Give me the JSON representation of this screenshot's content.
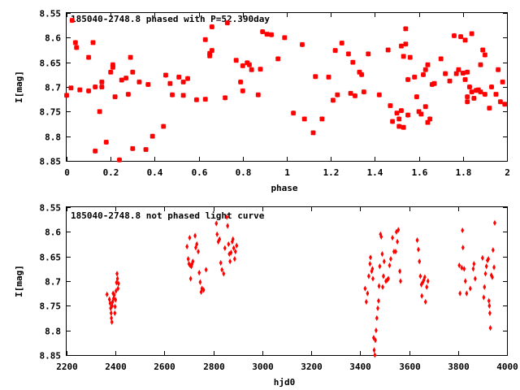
{
  "chart_data": [
    {
      "type": "scatter",
      "title": "185040-2748.8 phased with P=52.390day",
      "xlabel": "phase",
      "ylabel": "I[mag]",
      "xlim": [
        0,
        2
      ],
      "ylim": [
        8.85,
        8.55
      ],
      "y_inverted": true,
      "grid": false,
      "xticks": [
        "0",
        "0.2",
        "0.4",
        "0.6",
        "0.8",
        "1",
        "1.2",
        "1.4",
        "1.6",
        "1.8",
        "2"
      ],
      "yticks": [
        "8.55",
        "8.6",
        "8.65",
        "8.7",
        "8.75",
        "8.8",
        "8.85"
      ],
      "marker": "cross",
      "color": "#ff0000",
      "points": [
        [
          0.0,
          8.717
        ],
        [
          0.02,
          8.702
        ],
        [
          0.025,
          8.565
        ],
        [
          0.04,
          8.61
        ],
        [
          0.045,
          8.62
        ],
        [
          0.06,
          8.706
        ],
        [
          0.1,
          8.708
        ],
        [
          0.1,
          8.64
        ],
        [
          0.12,
          8.61
        ],
        [
          0.13,
          8.7
        ],
        [
          0.13,
          8.83
        ],
        [
          0.15,
          8.75
        ],
        [
          0.16,
          8.69
        ],
        [
          0.16,
          8.7
        ],
        [
          0.18,
          8.812
        ],
        [
          0.2,
          8.67
        ],
        [
          0.21,
          8.66
        ],
        [
          0.21,
          8.655
        ],
        [
          0.22,
          8.72
        ],
        [
          0.24,
          8.848
        ],
        [
          0.25,
          8.686
        ],
        [
          0.27,
          8.682
        ],
        [
          0.28,
          8.715
        ],
        [
          0.29,
          8.64
        ],
        [
          0.3,
          8.825
        ],
        [
          0.3,
          8.67
        ],
        [
          0.33,
          8.69
        ],
        [
          0.36,
          8.827
        ],
        [
          0.37,
          8.695
        ],
        [
          0.39,
          8.8
        ],
        [
          0.44,
          8.78
        ],
        [
          0.45,
          8.676
        ],
        [
          0.47,
          8.693
        ],
        [
          0.48,
          8.716
        ],
        [
          0.51,
          8.68
        ],
        [
          0.53,
          8.69
        ],
        [
          0.53,
          8.717
        ],
        [
          0.55,
          8.683
        ],
        [
          0.59,
          8.726
        ],
        [
          0.63,
          8.604
        ],
        [
          0.63,
          8.725
        ],
        [
          0.65,
          8.637
        ],
        [
          0.65,
          8.632
        ],
        [
          0.66,
          8.626
        ],
        [
          0.66,
          8.578
        ],
        [
          0.72,
          8.722
        ],
        [
          0.73,
          8.57
        ],
        [
          0.77,
          8.646
        ],
        [
          0.79,
          8.69
        ],
        [
          0.8,
          8.657
        ],
        [
          0.8,
          8.708
        ],
        [
          0.82,
          8.651
        ],
        [
          0.83,
          8.655
        ],
        [
          0.84,
          8.665
        ],
        [
          0.87,
          8.716
        ],
        [
          0.88,
          8.664
        ],
        [
          0.89,
          8.588
        ],
        [
          0.91,
          8.593
        ],
        [
          0.93,
          8.594
        ],
        [
          0.96,
          8.643
        ],
        [
          0.99,
          8.6
        ],
        [
          1.03,
          8.753
        ],
        [
          1.07,
          8.614
        ],
        [
          1.08,
          8.765
        ],
        [
          1.12,
          8.793
        ],
        [
          1.13,
          8.679
        ],
        [
          1.16,
          8.765
        ],
        [
          1.19,
          8.68
        ],
        [
          1.21,
          8.727
        ],
        [
          1.22,
          8.626
        ],
        [
          1.23,
          8.716
        ],
        [
          1.25,
          8.611
        ],
        [
          1.28,
          8.633
        ],
        [
          1.29,
          8.713
        ],
        [
          1.3,
          8.65
        ],
        [
          1.31,
          8.718
        ],
        [
          1.33,
          8.67
        ],
        [
          1.34,
          8.675
        ],
        [
          1.35,
          8.71
        ],
        [
          1.37,
          8.633
        ],
        [
          1.42,
          8.716
        ],
        [
          1.46,
          8.625
        ],
        [
          1.47,
          8.738
        ],
        [
          1.48,
          8.77
        ],
        [
          1.5,
          8.753
        ],
        [
          1.51,
          8.765
        ],
        [
          1.51,
          8.78
        ],
        [
          1.52,
          8.617
        ],
        [
          1.52,
          8.748
        ],
        [
          1.53,
          8.782
        ],
        [
          1.53,
          8.638
        ],
        [
          1.54,
          8.582
        ],
        [
          1.54,
          8.613
        ],
        [
          1.55,
          8.685
        ],
        [
          1.55,
          8.757
        ],
        [
          1.56,
          8.64
        ],
        [
          1.58,
          8.68
        ],
        [
          1.59,
          8.72
        ],
        [
          1.6,
          8.75
        ],
        [
          1.61,
          8.755
        ],
        [
          1.62,
          8.675
        ],
        [
          1.63,
          8.665
        ],
        [
          1.63,
          8.74
        ],
        [
          1.64,
          8.772
        ],
        [
          1.64,
          8.655
        ],
        [
          1.65,
          8.765
        ],
        [
          1.66,
          8.695
        ],
        [
          1.67,
          8.693
        ],
        [
          1.7,
          8.643
        ],
        [
          1.72,
          8.673
        ],
        [
          1.74,
          8.688
        ],
        [
          1.76,
          8.596
        ],
        [
          1.77,
          8.673
        ],
        [
          1.78,
          8.665
        ],
        [
          1.79,
          8.598
        ],
        [
          1.8,
          8.672
        ],
        [
          1.81,
          8.605
        ],
        [
          1.81,
          8.685
        ],
        [
          1.82,
          8.72
        ],
        [
          1.82,
          8.73
        ],
        [
          1.82,
          8.67
        ],
        [
          1.83,
          8.7
        ],
        [
          1.84,
          8.71
        ],
        [
          1.84,
          8.592
        ],
        [
          1.85,
          8.723
        ],
        [
          1.86,
          8.707
        ],
        [
          1.87,
          8.706
        ],
        [
          1.88,
          8.71
        ],
        [
          1.88,
          8.655
        ],
        [
          1.89,
          8.625
        ],
        [
          1.9,
          8.715
        ],
        [
          1.9,
          8.635
        ],
        [
          1.92,
          8.743
        ],
        [
          1.93,
          8.7
        ],
        [
          1.95,
          8.715
        ],
        [
          1.96,
          8.665
        ],
        [
          1.97,
          8.73
        ],
        [
          1.98,
          8.69
        ],
        [
          1.99,
          8.735
        ]
      ]
    },
    {
      "type": "scatter",
      "title": "185040-2748.8 not phased light curve",
      "xlabel": "hjd0",
      "ylabel": "I[mag]",
      "xlim": [
        2200,
        4000
      ],
      "ylim": [
        8.85,
        8.55
      ],
      "y_inverted": true,
      "grid": false,
      "xticks": [
        "2200",
        "2400",
        "2600",
        "2800",
        "3000",
        "3200",
        "3400",
        "3600",
        "3800",
        "4000"
      ],
      "yticks": [
        "8.55",
        "8.6",
        "8.65",
        "8.7",
        "8.75",
        "8.8",
        "8.85"
      ],
      "marker": "diamond",
      "color": "#ff0000",
      "points": [
        [
          2365,
          8.727
        ],
        [
          2375,
          8.737
        ],
        [
          2378,
          8.745
        ],
        [
          2380,
          8.755
        ],
        [
          2382,
          8.765
        ],
        [
          2383,
          8.775
        ],
        [
          2385,
          8.783
        ],
        [
          2386,
          8.75
        ],
        [
          2388,
          8.742
        ],
        [
          2390,
          8.725
        ],
        [
          2392,
          8.735
        ],
        [
          2395,
          8.728
        ],
        [
          2397,
          8.765
        ],
        [
          2398,
          8.752
        ],
        [
          2400,
          8.738
        ],
        [
          2402,
          8.72
        ],
        [
          2404,
          8.703
        ],
        [
          2406,
          8.685
        ],
        [
          2408,
          8.695
        ],
        [
          2410,
          8.715
        ],
        [
          2412,
          8.705
        ],
        [
          2692,
          8.63
        ],
        [
          2697,
          8.655
        ],
        [
          2700,
          8.665
        ],
        [
          2703,
          8.612
        ],
        [
          2705,
          8.668
        ],
        [
          2707,
          8.695
        ],
        [
          2710,
          8.67
        ],
        [
          2713,
          8.665
        ],
        [
          2716,
          8.66
        ],
        [
          2725,
          8.608
        ],
        [
          2728,
          8.632
        ],
        [
          2732,
          8.625
        ],
        [
          2738,
          8.64
        ],
        [
          2742,
          8.683
        ],
        [
          2746,
          8.702
        ],
        [
          2750,
          8.722
        ],
        [
          2753,
          8.715
        ],
        [
          2760,
          8.718
        ],
        [
          2770,
          8.677
        ],
        [
          2812,
          8.583
        ],
        [
          2815,
          8.605
        ],
        [
          2820,
          8.62
        ],
        [
          2825,
          8.615
        ],
        [
          2830,
          8.663
        ],
        [
          2835,
          8.677
        ],
        [
          2842,
          8.685
        ],
        [
          2847,
          8.633
        ],
        [
          2855,
          8.57
        ],
        [
          2858,
          8.588
        ],
        [
          2862,
          8.625
        ],
        [
          2865,
          8.645
        ],
        [
          2868,
          8.66
        ],
        [
          2872,
          8.642
        ],
        [
          2877,
          8.62
        ],
        [
          2880,
          8.615
        ],
        [
          2883,
          8.633
        ],
        [
          2887,
          8.655
        ],
        [
          2890,
          8.64
        ],
        [
          2895,
          8.628
        ],
        [
          3420,
          8.715
        ],
        [
          3425,
          8.742
        ],
        [
          3430,
          8.725
        ],
        [
          3435,
          8.69
        ],
        [
          3440,
          8.665
        ],
        [
          3442,
          8.652
        ],
        [
          3447,
          8.68
        ],
        [
          3450,
          8.675
        ],
        [
          3452,
          8.695
        ],
        [
          3455,
          8.815
        ],
        [
          3457,
          8.84
        ],
        [
          3460,
          8.85
        ],
        [
          3462,
          8.82
        ],
        [
          3465,
          8.8
        ],
        [
          3468,
          8.775
        ],
        [
          3472,
          8.755
        ],
        [
          3475,
          8.74
        ],
        [
          3477,
          8.71
        ],
        [
          3480,
          8.67
        ],
        [
          3483,
          8.605
        ],
        [
          3486,
          8.61
        ],
        [
          3490,
          8.645
        ],
        [
          3492,
          8.712
        ],
        [
          3495,
          8.69
        ],
        [
          3498,
          8.66
        ],
        [
          3505,
          8.7
        ],
        [
          3510,
          8.698
        ],
        [
          3515,
          8.695
        ],
        [
          3520,
          8.668
        ],
        [
          3525,
          8.655
        ],
        [
          3532,
          8.612
        ],
        [
          3538,
          8.64
        ],
        [
          3545,
          8.64
        ],
        [
          3548,
          8.6
        ],
        [
          3552,
          8.62
        ],
        [
          3556,
          8.596
        ],
        [
          3562,
          8.68
        ],
        [
          3565,
          8.7
        ],
        [
          3633,
          8.617
        ],
        [
          3638,
          8.636
        ],
        [
          3642,
          8.66
        ],
        [
          3646,
          8.69
        ],
        [
          3650,
          8.707
        ],
        [
          3652,
          8.73
        ],
        [
          3656,
          8.702
        ],
        [
          3660,
          8.698
        ],
        [
          3664,
          8.692
        ],
        [
          3667,
          8.742
        ],
        [
          3672,
          8.712
        ],
        [
          3677,
          8.7
        ],
        [
          3805,
          8.668
        ],
        [
          3808,
          8.725
        ],
        [
          3815,
          8.673
        ],
        [
          3818,
          8.597
        ],
        [
          3820,
          8.632
        ],
        [
          3825,
          8.675
        ],
        [
          3830,
          8.7
        ],
        [
          3835,
          8.725
        ],
        [
          3850,
          8.715
        ],
        [
          3862,
          8.675
        ],
        [
          3865,
          8.665
        ],
        [
          3870,
          8.695
        ],
        [
          3900,
          8.653
        ],
        [
          3905,
          8.733
        ],
        [
          3908,
          8.712
        ],
        [
          3912,
          8.685
        ],
        [
          3916,
          8.67
        ],
        [
          3920,
          8.658
        ],
        [
          3924,
          8.655
        ],
        [
          3926,
          8.74
        ],
        [
          3928,
          8.75
        ],
        [
          3930,
          8.765
        ],
        [
          3932,
          8.795
        ],
        [
          3936,
          8.688
        ],
        [
          3940,
          8.692
        ],
        [
          3943,
          8.637
        ],
        [
          3947,
          8.672
        ],
        [
          3950,
          8.582
        ]
      ]
    }
  ]
}
